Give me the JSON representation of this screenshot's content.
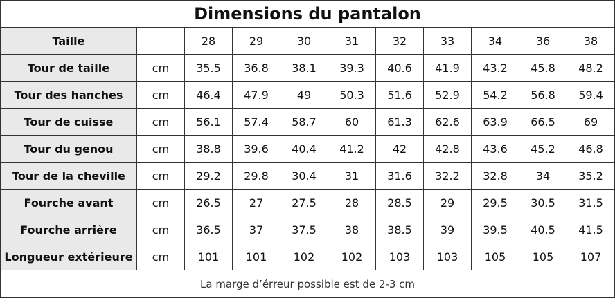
{
  "title": "Dimensions du pantalon",
  "header": {
    "label": "Taille",
    "sizes": [
      "28",
      "29",
      "30",
      "31",
      "32",
      "33",
      "34",
      "36",
      "38"
    ]
  },
  "rows": [
    {
      "label": "Tour de taille",
      "unit": "cm",
      "values": [
        "35.5",
        "36.8",
        "38.1",
        "39.3",
        "40.6",
        "41.9",
        "43.2",
        "45.8",
        "48.2"
      ]
    },
    {
      "label": "Tour des hanches",
      "unit": "cm",
      "values": [
        "46.4",
        "47.9",
        "49",
        "50.3",
        "51.6",
        "52.9",
        "54.2",
        "56.8",
        "59.4"
      ]
    },
    {
      "label": "Tour de cuisse",
      "unit": "cm",
      "values": [
        "56.1",
        "57.4",
        "58.7",
        "60",
        "61.3",
        "62.6",
        "63.9",
        "66.5",
        "69"
      ]
    },
    {
      "label": "Tour du genou",
      "unit": "cm",
      "values": [
        "38.8",
        "39.6",
        "40.4",
        "41.2",
        "42",
        "42.8",
        "43.6",
        "45.2",
        "46.8"
      ]
    },
    {
      "label": "Tour de la cheville",
      "unit": "cm",
      "values": [
        "29.2",
        "29.8",
        "30.4",
        "31",
        "31.6",
        "32.2",
        "32.8",
        "34",
        "35.2"
      ]
    },
    {
      "label": "Fourche avant",
      "unit": "cm",
      "values": [
        "26.5",
        "27",
        "27.5",
        "28",
        "28.5",
        "29",
        "29.5",
        "30.5",
        "31.5"
      ]
    },
    {
      "label": "Fourche arrière",
      "unit": "cm",
      "values": [
        "36.5",
        "37",
        "37.5",
        "38",
        "38.5",
        "39",
        "39.5",
        "40.5",
        "41.5"
      ]
    },
    {
      "label": "Longueur extérieure",
      "unit": "cm",
      "values": [
        "101",
        "101",
        "102",
        "102",
        "103",
        "103",
        "105",
        "105",
        "107"
      ]
    }
  ],
  "footer": "La marge d’érreur possible est de 2-3 cm"
}
